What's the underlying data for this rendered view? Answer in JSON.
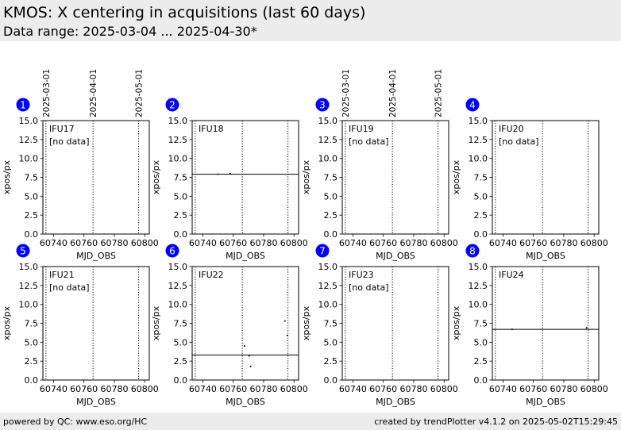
{
  "header": {
    "title": "KMOS: X centering in acquisitions (last 60 days)",
    "subtitle": "Data range: 2025-03-04 ... 2025-04-30*"
  },
  "footer": {
    "left": "powered by QC: www.eso.org/HC",
    "right": "created by trendPlotter v4.1.2 on 2025-05-02T15:29:45"
  },
  "colors": {
    "badge": "#0000ff",
    "badge_text": "#ffffff",
    "header_bg": "#ececec"
  },
  "chart_data": {
    "type": "scatter",
    "xlabel": "MJD_OBS",
    "ylabel": "xpos/px",
    "xlim": [
      60733,
      60803
    ],
    "ylim": [
      0,
      15
    ],
    "xticks": [
      60740,
      60760,
      60780,
      60800
    ],
    "xtick_labels": [
      "60740",
      "60760",
      "60780",
      "60800"
    ],
    "yticks": [
      0,
      2.5,
      5,
      7.5,
      10,
      12.5,
      15
    ],
    "ytick_labels": [
      "0.0",
      "2.5",
      "5.0",
      "7.5",
      "10.0",
      "12.5",
      "15.0"
    ],
    "date_markers": [
      {
        "mjd": 60735,
        "label": "2025-03-01"
      },
      {
        "mjd": 60766,
        "label": "2025-04-01"
      },
      {
        "mjd": 60796,
        "label": "2025-05-01"
      }
    ],
    "panels": [
      {
        "id": "1",
        "name": "IFU17",
        "note": "[no data]",
        "points": [],
        "median": null
      },
      {
        "id": "2",
        "name": "IFU18",
        "note": "",
        "points": [
          [
            60750,
            7.9
          ],
          [
            60758,
            8.0
          ]
        ],
        "median": 7.9
      },
      {
        "id": "3",
        "name": "IFU19",
        "note": "[no data]",
        "points": [],
        "median": null
      },
      {
        "id": "4",
        "name": "IFU20",
        "note": "[no data]",
        "points": [],
        "median": null
      },
      {
        "id": "5",
        "name": "IFU21",
        "note": "[no data]",
        "points": [],
        "median": null
      },
      {
        "id": "6",
        "name": "IFU22",
        "note": "",
        "points": [
          [
            60767.5,
            4.5
          ],
          [
            60770.5,
            3.2
          ],
          [
            60771.5,
            1.8
          ],
          [
            60794,
            7.8
          ],
          [
            60795.5,
            5.9
          ]
        ],
        "median": 3.3
      },
      {
        "id": "7",
        "name": "IFU23",
        "note": "[no data]",
        "points": [],
        "median": null
      },
      {
        "id": "8",
        "name": "IFU24",
        "note": "",
        "points": [
          [
            60746,
            6.7
          ],
          [
            60795,
            6.9
          ]
        ],
        "median": 6.7
      }
    ]
  }
}
